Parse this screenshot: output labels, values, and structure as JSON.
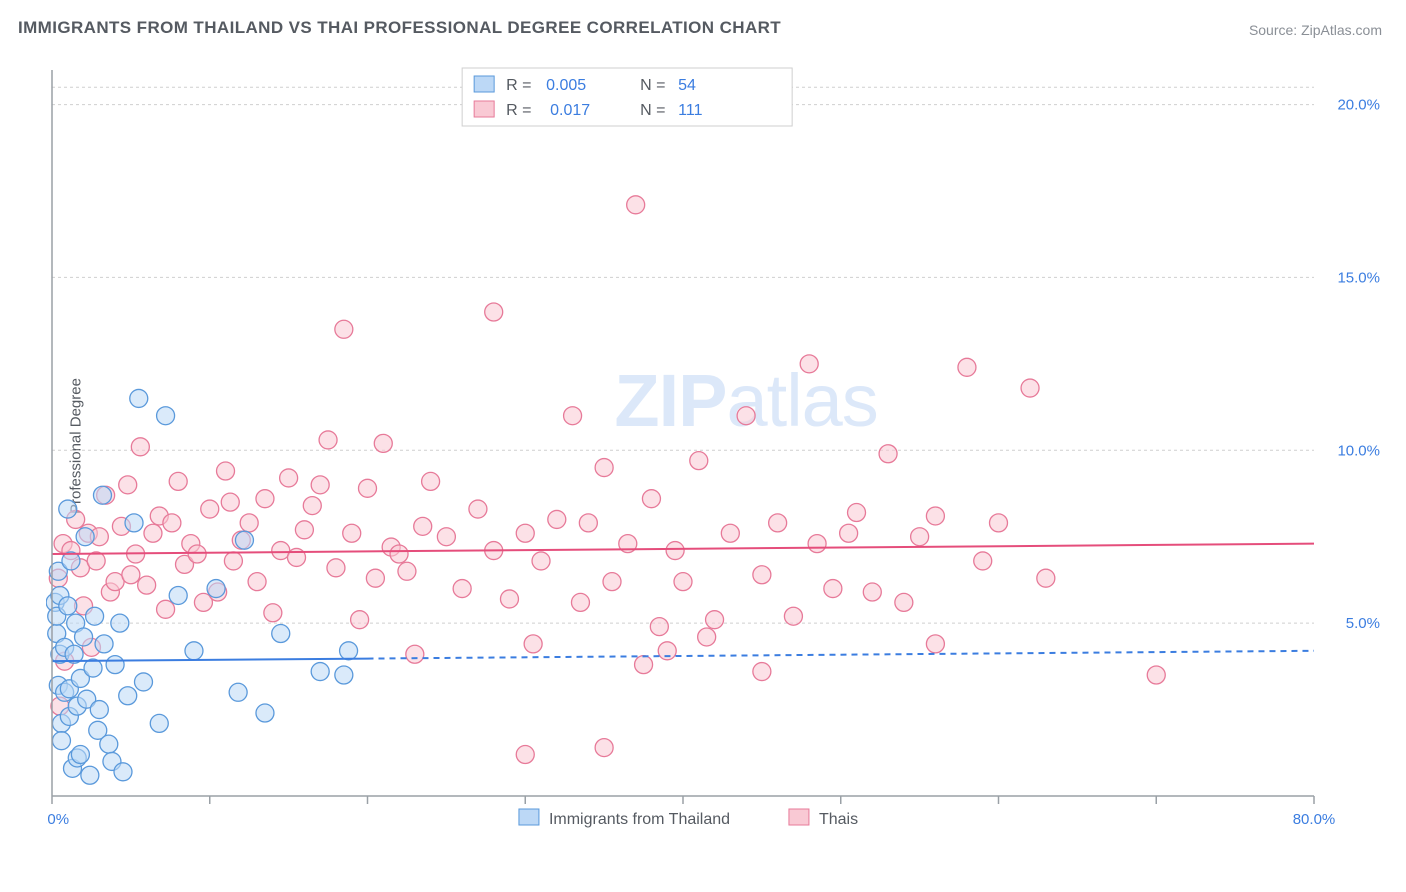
{
  "chart": {
    "type": "scatter",
    "title": "IMMIGRANTS FROM THAILAND VS THAI PROFESSIONAL DEGREE CORRELATION CHART",
    "source": "Source: ZipAtlas.com",
    "title_fontsize": 17,
    "title_color": "#555a61",
    "source_fontsize": 14,
    "source_color": "#8a8f96",
    "ylabel": "Professional Degree",
    "ylabel_fontsize": 15,
    "background_color": "#ffffff",
    "grid_color": "#cfcfcf",
    "grid_dash": "3 3",
    "axis_color": "#9aa0a6",
    "tick_label_color": "#3b7de0",
    "tick_label_fontsize": 15,
    "xlim": [
      0,
      80
    ],
    "ylim": [
      0,
      21
    ],
    "x_tick_positions": [
      0,
      10,
      20,
      30,
      40,
      50,
      60,
      70,
      80
    ],
    "x_tick_labels": {
      "0": "0.0%",
      "80": "80.0%"
    },
    "y_grid_positions": [
      5,
      10,
      15,
      20
    ],
    "y_tick_labels": {
      "5": "5.0%",
      "10": "10.0%",
      "15": "15.0%",
      "20": "20.0%"
    },
    "watermark": {
      "text_bold": "ZIP",
      "text_thin": "atlas",
      "fontsize": 74,
      "opacity": 0.18,
      "color": "#3b7de0"
    },
    "series": {
      "immigrants": {
        "label": "Immigrants from Thailand",
        "R": "0.005",
        "N": "54",
        "marker_fill": "#bcd8f6",
        "marker_stroke": "#5a99db",
        "marker_fill_opacity": 0.55,
        "marker_radius": 9,
        "trend_color": "#3b7de0",
        "trend_width": 2,
        "trend_solid_xmax": 20,
        "trend_y_start": 3.9,
        "trend_y_end": 4.2,
        "points": [
          [
            0.2,
            5.6
          ],
          [
            0.3,
            4.7
          ],
          [
            0.3,
            5.2
          ],
          [
            0.4,
            6.5
          ],
          [
            0.4,
            3.2
          ],
          [
            0.5,
            5.8
          ],
          [
            0.5,
            4.1
          ],
          [
            0.6,
            2.1
          ],
          [
            0.6,
            1.6
          ],
          [
            0.8,
            4.3
          ],
          [
            0.8,
            3.0
          ],
          [
            1.0,
            5.5
          ],
          [
            1.0,
            8.3
          ],
          [
            1.1,
            2.3
          ],
          [
            1.1,
            3.1
          ],
          [
            1.2,
            6.8
          ],
          [
            1.3,
            0.8
          ],
          [
            1.4,
            4.1
          ],
          [
            1.5,
            5.0
          ],
          [
            1.6,
            2.6
          ],
          [
            1.6,
            1.1
          ],
          [
            1.8,
            3.4
          ],
          [
            1.8,
            1.2
          ],
          [
            2.0,
            4.6
          ],
          [
            2.1,
            7.5
          ],
          [
            2.2,
            2.8
          ],
          [
            2.4,
            0.6
          ],
          [
            2.6,
            3.7
          ],
          [
            2.7,
            5.2
          ],
          [
            2.9,
            1.9
          ],
          [
            3.0,
            2.5
          ],
          [
            3.2,
            8.7
          ],
          [
            3.3,
            4.4
          ],
          [
            3.6,
            1.5
          ],
          [
            3.8,
            1.0
          ],
          [
            4.0,
            3.8
          ],
          [
            4.3,
            5.0
          ],
          [
            4.5,
            0.7
          ],
          [
            4.8,
            2.9
          ],
          [
            5.2,
            7.9
          ],
          [
            5.5,
            11.5
          ],
          [
            5.8,
            3.3
          ],
          [
            6.8,
            2.1
          ],
          [
            7.2,
            11.0
          ],
          [
            8.0,
            5.8
          ],
          [
            9.0,
            4.2
          ],
          [
            10.4,
            6.0
          ],
          [
            11.8,
            3.0
          ],
          [
            12.2,
            7.4
          ],
          [
            13.5,
            2.4
          ],
          [
            14.5,
            4.7
          ],
          [
            17.0,
            3.6
          ],
          [
            18.8,
            4.2
          ],
          [
            18.5,
            3.5
          ]
        ]
      },
      "thais": {
        "label": "Thais",
        "R": "0.017",
        "N": "111",
        "marker_fill": "#f9c9d4",
        "marker_stroke": "#e77a99",
        "marker_fill_opacity": 0.55,
        "marker_radius": 9,
        "trend_color": "#e54d7b",
        "trend_width": 2,
        "trend_y_start": 7.0,
        "trend_y_end": 7.3,
        "points": [
          [
            0.4,
            6.3
          ],
          [
            0.5,
            2.6
          ],
          [
            0.7,
            7.3
          ],
          [
            0.8,
            3.9
          ],
          [
            1.2,
            7.1
          ],
          [
            1.5,
            8.0
          ],
          [
            1.8,
            6.6
          ],
          [
            2.0,
            5.5
          ],
          [
            2.3,
            7.6
          ],
          [
            2.5,
            4.3
          ],
          [
            2.8,
            6.8
          ],
          [
            3.0,
            7.5
          ],
          [
            3.4,
            8.7
          ],
          [
            3.7,
            5.9
          ],
          [
            4.0,
            6.2
          ],
          [
            4.4,
            7.8
          ],
          [
            4.8,
            9.0
          ],
          [
            5.0,
            6.4
          ],
          [
            5.3,
            7.0
          ],
          [
            5.6,
            10.1
          ],
          [
            6.0,
            6.1
          ],
          [
            6.4,
            7.6
          ],
          [
            6.8,
            8.1
          ],
          [
            7.2,
            5.4
          ],
          [
            7.6,
            7.9
          ],
          [
            8.0,
            9.1
          ],
          [
            8.4,
            6.7
          ],
          [
            8.8,
            7.3
          ],
          [
            9.2,
            7.0
          ],
          [
            9.6,
            5.6
          ],
          [
            10.0,
            8.3
          ],
          [
            10.5,
            5.9
          ],
          [
            11.0,
            9.4
          ],
          [
            11.5,
            6.8
          ],
          [
            12.0,
            7.4
          ],
          [
            12.5,
            7.9
          ],
          [
            13.0,
            6.2
          ],
          [
            13.5,
            8.6
          ],
          [
            14.0,
            5.3
          ],
          [
            14.5,
            7.1
          ],
          [
            15.0,
            9.2
          ],
          [
            15.5,
            6.9
          ],
          [
            16.0,
            7.7
          ],
          [
            16.5,
            8.4
          ],
          [
            17.0,
            9.0
          ],
          [
            17.5,
            10.3
          ],
          [
            18.0,
            6.6
          ],
          [
            18.5,
            13.5
          ],
          [
            19.0,
            7.6
          ],
          [
            19.5,
            5.1
          ],
          [
            20.0,
            8.9
          ],
          [
            20.5,
            6.3
          ],
          [
            21.0,
            10.2
          ],
          [
            21.5,
            7.2
          ],
          [
            22.0,
            7.0
          ],
          [
            22.5,
            6.5
          ],
          [
            23.0,
            4.1
          ],
          [
            23.5,
            7.8
          ],
          [
            24.0,
            9.1
          ],
          [
            25.0,
            7.5
          ],
          [
            26.0,
            6.0
          ],
          [
            27.0,
            8.3
          ],
          [
            28.0,
            14.0
          ],
          [
            28.0,
            7.1
          ],
          [
            29.0,
            5.7
          ],
          [
            30.0,
            7.6
          ],
          [
            30.5,
            4.4
          ],
          [
            31.0,
            6.8
          ],
          [
            32.0,
            8.0
          ],
          [
            33.0,
            11.0
          ],
          [
            33.5,
            5.6
          ],
          [
            34.0,
            7.9
          ],
          [
            35.0,
            9.5
          ],
          [
            35.5,
            6.2
          ],
          [
            37.0,
            17.1
          ],
          [
            36.5,
            7.3
          ],
          [
            37.5,
            3.8
          ],
          [
            38.0,
            8.6
          ],
          [
            38.5,
            4.9
          ],
          [
            39.5,
            7.1
          ],
          [
            40.0,
            6.2
          ],
          [
            41.0,
            9.7
          ],
          [
            41.5,
            4.6
          ],
          [
            42.0,
            5.1
          ],
          [
            43.0,
            7.6
          ],
          [
            44.0,
            11.0
          ],
          [
            45.0,
            6.4
          ],
          [
            45.0,
            3.6
          ],
          [
            46.0,
            7.9
          ],
          [
            47.0,
            5.2
          ],
          [
            48.0,
            12.5
          ],
          [
            48.5,
            7.3
          ],
          [
            49.5,
            6.0
          ],
          [
            50.5,
            7.6
          ],
          [
            51.0,
            8.2
          ],
          [
            52.0,
            5.9
          ],
          [
            53.0,
            9.9
          ],
          [
            54.0,
            5.6
          ],
          [
            55.0,
            7.5
          ],
          [
            56.0,
            4.4
          ],
          [
            56.0,
            8.1
          ],
          [
            58.0,
            12.4
          ],
          [
            59.0,
            6.8
          ],
          [
            60.0,
            7.9
          ],
          [
            62.0,
            11.8
          ],
          [
            63.0,
            6.3
          ],
          [
            30.0,
            1.2
          ],
          [
            35.0,
            1.4
          ],
          [
            39.0,
            4.2
          ],
          [
            70.0,
            3.5
          ],
          [
            11.3,
            8.5
          ]
        ]
      }
    },
    "stat_legend": {
      "border_color": "#cfcfcf",
      "bg": "#ffffff",
      "R_label": "R =",
      "N_label": "N =",
      "text_color": "#555a61",
      "num_color": "#3b7de0",
      "fontsize": 16
    },
    "bottom_legend": {
      "text_color": "#555a61",
      "fontsize": 16
    }
  }
}
